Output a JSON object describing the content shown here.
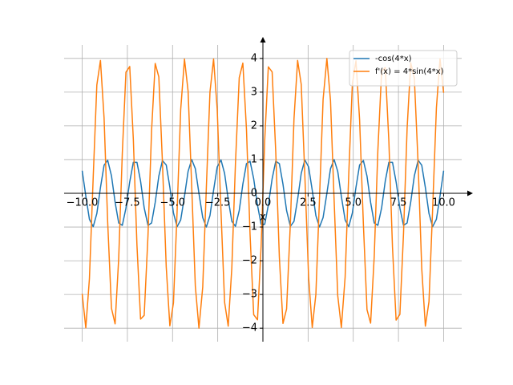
{
  "chart_data": {
    "type": "line",
    "xlabel": "x",
    "x": [
      -10,
      -9.8,
      -9.6,
      -9.39,
      -9.19,
      -8.99,
      -8.79,
      -8.59,
      -8.38,
      -8.18,
      -7.98,
      -7.78,
      -7.58,
      -7.37,
      -7.17,
      -6.97,
      -6.77,
      -6.57,
      -6.36,
      -6.16,
      -5.96,
      -5.76,
      -5.56,
      -5.35,
      -5.15,
      -4.95,
      -4.75,
      -4.55,
      -4.34,
      -4.14,
      -3.94,
      -3.74,
      -3.54,
      -3.33,
      -3.13,
      -2.93,
      -2.73,
      -2.53,
      -2.32,
      -2.12,
      -1.92,
      -1.72,
      -1.52,
      -1.31,
      -1.11,
      -0.91,
      -0.71,
      -0.51,
      -0.3,
      -0.1,
      0.1,
      0.3,
      0.51,
      0.71,
      0.91,
      1.11,
      1.31,
      1.52,
      1.72,
      1.92,
      2.12,
      2.32,
      2.53,
      2.73,
      2.93,
      3.13,
      3.33,
      3.54,
      3.74,
      3.94,
      4.14,
      4.34,
      4.55,
      4.75,
      4.95,
      5.15,
      5.35,
      5.56,
      5.76,
      5.96,
      6.16,
      6.36,
      6.57,
      6.77,
      6.97,
      7.17,
      7.37,
      7.58,
      7.78,
      7.98,
      8.18,
      8.38,
      8.59,
      8.79,
      8.99,
      9.19,
      9.39,
      9.6,
      9.8,
      10
    ],
    "series": [
      {
        "name": "-cos(4*x)",
        "color": "#1f77b4",
        "values": [
          0.67,
          -0.08,
          -0.77,
          -0.99,
          -0.6,
          0.17,
          0.83,
          0.98,
          0.52,
          -0.26,
          -0.88,
          -0.95,
          -0.44,
          0.34,
          0.92,
          0.92,
          0.36,
          -0.43,
          -0.95,
          -0.88,
          -0.27,
          0.51,
          0.97,
          0.84,
          0.18,
          -0.58,
          -0.99,
          -0.79,
          -0.09,
          0.65,
          1.0,
          0.73,
          0.0,
          -0.72,
          -1.0,
          -0.66,
          0.09,
          0.78,
          0.99,
          0.59,
          -0.18,
          -0.83,
          -0.98,
          -0.51,
          0.27,
          0.88,
          0.95,
          0.43,
          -0.35,
          -0.92,
          -0.92,
          -0.35,
          0.43,
          0.95,
          0.88,
          0.27,
          -0.51,
          -0.98,
          -0.83,
          -0.18,
          0.59,
          0.99,
          0.78,
          0.09,
          -0.66,
          -1.0,
          -0.72,
          0.0,
          0.73,
          1.0,
          0.65,
          -0.09,
          -0.79,
          -0.99,
          -0.58,
          0.18,
          0.84,
          0.97,
          0.51,
          -0.27,
          -0.88,
          -0.95,
          -0.43,
          0.36,
          0.92,
          0.92,
          0.34,
          -0.44,
          -0.95,
          -0.88,
          -0.26,
          0.52,
          0.98,
          0.83,
          0.17,
          -0.6,
          -0.99,
          -0.77,
          -0.08,
          0.67
        ]
      },
      {
        "name": "f'(x) = 4*sin(4*x)",
        "color": "#ff7f0e",
        "values": [
          -2.98,
          -3.99,
          -2.53,
          0.49,
          3.21,
          3.94,
          2.24,
          -0.85,
          -3.41,
          -3.87,
          -1.93,
          1.2,
          3.59,
          3.76,
          1.6,
          -1.54,
          -3.73,
          -3.62,
          -1.26,
          1.87,
          3.85,
          3.45,
          0.92,
          -2.18,
          -3.93,
          -3.25,
          -0.56,
          2.48,
          3.98,
          3.03,
          0.2,
          -2.75,
          -4.0,
          -2.78,
          0.17,
          3.0,
          3.98,
          2.5,
          -0.53,
          -3.23,
          -3.94,
          -2.21,
          0.88,
          3.43,
          3.86,
          1.9,
          -1.23,
          -3.6,
          -3.75,
          -1.57,
          1.57,
          3.75,
          3.6,
          1.23,
          -1.9,
          -3.86,
          -3.43,
          -0.88,
          2.21,
          3.94,
          3.23,
          0.53,
          -2.5,
          -3.98,
          -3.0,
          -0.17,
          2.78,
          4.0,
          2.75,
          -0.2,
          -3.03,
          -3.98,
          -2.48,
          0.56,
          3.25,
          3.93,
          2.18,
          -0.92,
          -3.45,
          -3.85,
          -1.87,
          1.26,
          3.62,
          3.73,
          1.54,
          -1.6,
          -3.76,
          -3.59,
          -1.2,
          1.93,
          3.87,
          3.41,
          0.85,
          -2.24,
          -3.94,
          -3.21,
          -0.49,
          2.53,
          3.99,
          2.98
        ]
      }
    ],
    "xlim": [
      -11,
      11
    ],
    "ylim": [
      -4.4,
      4.4
    ],
    "xticks": [
      {
        "value": -10,
        "label": "−10.0"
      },
      {
        "value": -7.5,
        "label": "−7.5"
      },
      {
        "value": -5,
        "label": "−5.0"
      },
      {
        "value": -2.5,
        "label": "−2.5"
      },
      {
        "value": 0,
        "label": "0.0"
      },
      {
        "value": 2.5,
        "label": "2.5"
      },
      {
        "value": 5,
        "label": "5.0"
      },
      {
        "value": 7.5,
        "label": "7.5"
      },
      {
        "value": 10,
        "label": "10.0"
      }
    ],
    "yticks": [
      {
        "value": -4,
        "label": "−4"
      },
      {
        "value": -3,
        "label": "−3"
      },
      {
        "value": -2,
        "label": "−2"
      },
      {
        "value": -1,
        "label": "−1"
      },
      0,
      1,
      2,
      3,
      4
    ],
    "grid": true,
    "legend": "upper right"
  }
}
